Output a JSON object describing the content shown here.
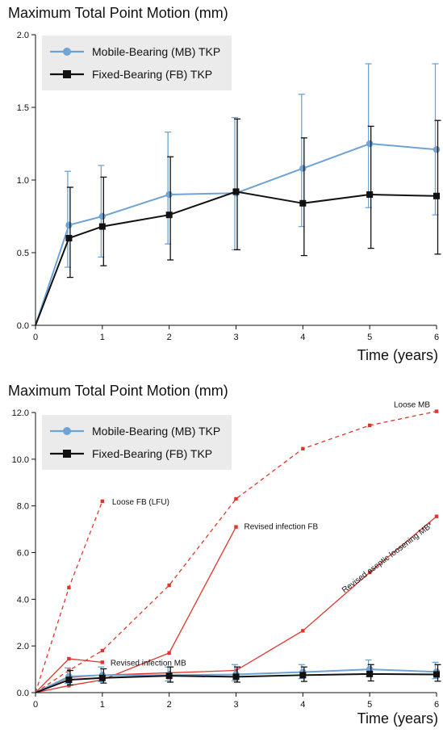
{
  "colors": {
    "mb": "#6fa3d4",
    "fb": "#111111",
    "annot": "#e0352b"
  },
  "chart_data": [
    {
      "type": "line",
      "title": "Maximum Total Point Motion (mm)",
      "xlabel": "Time (years)",
      "ylabel": "",
      "xlim": [
        0,
        6
      ],
      "ylim": [
        0,
        2
      ],
      "x_ticks": [
        "0",
        "1",
        "2",
        "3",
        "4",
        "5",
        "6"
      ],
      "y_ticks": [
        "0.0",
        "0.5",
        "1.0",
        "1.5",
        "2.0"
      ],
      "legend_position": "top-left",
      "grid": false,
      "series": [
        {
          "name": "Mobile-Bearing (MB) TKP",
          "color": "#6fa3d4",
          "marker": "circle",
          "x": [
            0,
            0.5,
            1,
            2,
            3,
            4,
            5,
            6
          ],
          "y": [
            0,
            0.69,
            0.75,
            0.9,
            0.91,
            1.08,
            1.25,
            1.21
          ],
          "err_low": [
            null,
            0.4,
            0.47,
            0.56,
            0.52,
            0.68,
            0.81,
            0.76
          ],
          "err_high": [
            null,
            1.06,
            1.1,
            1.33,
            1.43,
            1.59,
            1.8,
            1.8
          ]
        },
        {
          "name": "Fixed-Bearing (FB) TKP",
          "color": "#111111",
          "marker": "square",
          "x": [
            0,
            0.5,
            1,
            2,
            3,
            4,
            5,
            6
          ],
          "y": [
            0,
            0.6,
            0.68,
            0.76,
            0.92,
            0.84,
            0.9,
            0.89
          ],
          "err_low": [
            null,
            0.33,
            0.41,
            0.45,
            0.52,
            0.48,
            0.53,
            0.49
          ],
          "err_high": [
            null,
            0.95,
            1.02,
            1.16,
            1.42,
            1.29,
            1.37,
            1.41
          ]
        }
      ],
      "annotations": []
    },
    {
      "type": "line",
      "title": "Maximum Total Point Motion (mm)",
      "xlabel": "Time (years)",
      "ylabel": "",
      "xlim": [
        0,
        6
      ],
      "ylim": [
        0,
        12
      ],
      "x_ticks": [
        "0",
        "1",
        "2",
        "3",
        "4",
        "5",
        "6"
      ],
      "y_ticks": [
        "0.0",
        "2.0",
        "4.0",
        "6.0",
        "8.0",
        "10.0",
        "12.0"
      ],
      "legend_position": "top-left",
      "grid": false,
      "series": [
        {
          "name": "Mobile-Bearing (MB) TKP",
          "color": "#6fa3d4",
          "marker": "circle",
          "x": [
            0,
            0.5,
            1,
            2,
            3,
            4,
            5,
            6
          ],
          "y": [
            0,
            0.69,
            0.75,
            0.75,
            0.78,
            0.88,
            1.0,
            0.89
          ],
          "err_low": [
            null,
            0.4,
            0.47,
            0.5,
            0.5,
            0.6,
            0.7,
            0.6
          ],
          "err_high": [
            null,
            1.06,
            1.1,
            1.1,
            1.2,
            1.2,
            1.4,
            1.3
          ]
        },
        {
          "name": "Fixed-Bearing (FB) TKP",
          "color": "#111111",
          "marker": "square",
          "x": [
            0,
            0.5,
            1,
            2,
            3,
            4,
            5,
            6
          ],
          "y": [
            0,
            0.55,
            0.63,
            0.72,
            0.68,
            0.75,
            0.8,
            0.78
          ],
          "err_low": [
            null,
            0.33,
            0.41,
            0.45,
            0.45,
            0.48,
            0.5,
            0.49
          ],
          "err_high": [
            null,
            0.95,
            1.02,
            1.1,
            1.1,
            1.1,
            1.2,
            1.2
          ]
        }
      ],
      "annotations": [
        {
          "label": "Loose FB (LFU)",
          "style": "dashed",
          "x": [
            0,
            0.5,
            1
          ],
          "y": [
            0,
            4.5,
            8.2
          ],
          "label_anchor": "end"
        },
        {
          "label": "Loose MB",
          "style": "dashed",
          "x": [
            0,
            0.5,
            1,
            2,
            3,
            4,
            5,
            6
          ],
          "y": [
            0,
            0.95,
            1.8,
            4.6,
            8.3,
            10.45,
            11.45,
            12.05
          ],
          "label_anchor": "end"
        },
        {
          "label": "Revised infection FB",
          "style": "solid",
          "x": [
            0,
            0.5,
            1,
            2,
            3
          ],
          "y": [
            0,
            0.3,
            0.55,
            1.7,
            7.1
          ],
          "label_anchor": "end"
        },
        {
          "label": "Revised infection MB",
          "style": "solid",
          "x": [
            0,
            0.5,
            1
          ],
          "y": [
            0,
            1.45,
            1.3
          ],
          "label_anchor": "end"
        },
        {
          "label": "Revised aseptic loosening MB*",
          "style": "solid",
          "x": [
            0,
            0.5,
            1,
            2,
            3,
            4,
            5,
            6
          ],
          "y": [
            0,
            0.65,
            0.75,
            0.85,
            0.95,
            2.65,
            5.15,
            7.55
          ],
          "label_anchor": "end"
        }
      ]
    }
  ]
}
